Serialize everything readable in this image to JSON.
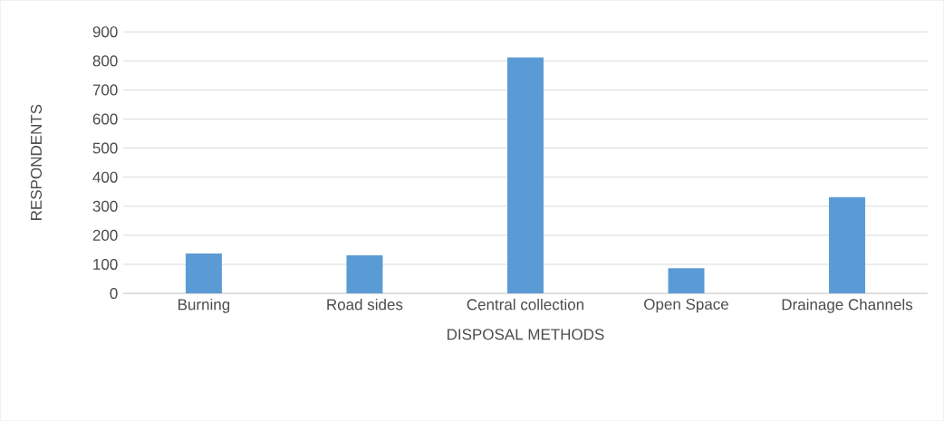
{
  "chart_data": {
    "type": "bar",
    "categories": [
      "Burning",
      "Road sides",
      "Central collection",
      "Open Space",
      "Drainage Channels"
    ],
    "values": [
      137,
      131,
      812,
      87,
      331
    ],
    "color": "#5b9bd5",
    "xlabel": "DISPOSAL METHODS",
    "ylabel": "RESPONDENTS",
    "ylim": [
      0,
      900
    ],
    "yticks": [
      0,
      100,
      200,
      300,
      400,
      500,
      600,
      700,
      800,
      900
    ],
    "grid": "y"
  }
}
